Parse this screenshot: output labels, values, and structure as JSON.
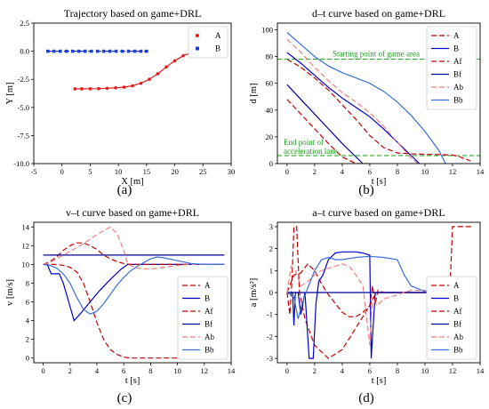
{
  "panels": [
    {
      "id": "a",
      "label": "(a)",
      "chart_data": {
        "type": "line",
        "title": "Trajectory based on game+DRL",
        "xlabel": "X [m]",
        "ylabel": "Y [m]",
        "xlim": [
          -5,
          30
        ],
        "ylim": [
          -10,
          2.5
        ],
        "xticks": [
          -5,
          0,
          5,
          10,
          15,
          20,
          25,
          30
        ],
        "yticks": [
          -10.0,
          -7.5,
          -5.0,
          -2.5,
          0.0,
          2.5
        ],
        "ytick_labels": [
          "-10.0",
          "-7.5",
          "-5.0",
          "-2.5",
          "0.0",
          "2.5"
        ],
        "legend_position": "top-right",
        "series": [
          {
            "name": "A",
            "color": "#e41a1c",
            "dash": "",
            "marker": "dot",
            "x": [
              2.3,
              3.5,
              5,
              6.5,
              8,
              9.5,
              11,
              12.5,
              14,
              15.5,
              17,
              18.5,
              20,
              21.5,
              23,
              24.5,
              26
            ],
            "y": [
              -3.35,
              -3.35,
              -3.34,
              -3.33,
              -3.3,
              -3.26,
              -3.2,
              -3.08,
              -2.85,
              -2.5,
              -2.0,
              -1.4,
              -0.85,
              -0.4,
              -0.1,
              0.05,
              0.1
            ]
          },
          {
            "name": "B",
            "color": "#1f3fd0",
            "dash": "6,3",
            "marker": "square",
            "x": [
              -2.5,
              -1.4,
              -0.3,
              0.8,
              1.9,
              3.0,
              4.1,
              5.2,
              6.3,
              7.4,
              8.5,
              9.6,
              10.7,
              11.8,
              12.9,
              14.0,
              15.0
            ],
            "y": [
              0,
              0,
              0,
              0,
              0,
              0,
              0,
              0,
              0,
              0,
              0,
              0,
              0,
              0,
              0,
              0,
              0
            ]
          }
        ]
      }
    },
    {
      "id": "b",
      "label": "(b)",
      "chart_data": {
        "type": "line",
        "title": "d–t curve based on game+DRL",
        "xlabel": "t [s]",
        "ylabel": "d [m]",
        "xlim": [
          -0.7,
          14
        ],
        "ylim": [
          0,
          105
        ],
        "xticks": [
          0,
          2,
          4,
          6,
          8,
          10,
          12,
          14
        ],
        "yticks": [
          0,
          20,
          40,
          60,
          80,
          100
        ],
        "legend_position": "top-right",
        "hlines": [
          {
            "y": 78,
            "color": "#1a9a1a",
            "dash": "5,3",
            "label": "Starting point of game area"
          },
          {
            "y": 6,
            "color": "#1a9a1a",
            "dash": "5,3",
            "label": "End point of acceleration lane"
          }
        ],
        "series": [
          {
            "name": "A",
            "color": "#c00000",
            "dash": "6,3",
            "x": [
              0,
              1,
              2,
              3,
              4,
              5,
              6,
              7,
              8,
              9,
              10,
              11,
              12,
              12.5,
              13.3
            ],
            "y": [
              78,
              72,
              64,
              55,
              44,
              33,
              21,
              12,
              8,
              7.3,
              7,
              6.8,
              6.4,
              5.2,
              2
            ]
          },
          {
            "name": "B",
            "color": "#0000cc",
            "dash": "",
            "x": [
              0,
              1,
              2,
              3,
              4,
              5,
              6,
              7,
              8,
              9,
              9.6
            ],
            "y": [
              83,
              75,
              66,
              57,
              49,
              42,
              35,
              26,
              16,
              6,
              0
            ]
          },
          {
            "name": "Af",
            "color": "#c00000",
            "dash": "6,3",
            "x": [
              0,
              1,
              2,
              3,
              4,
              5,
              5.9
            ],
            "y": [
              48,
              37,
              26,
              15,
              5,
              0,
              0
            ]
          },
          {
            "name": "Bf",
            "color": "#000099",
            "dash": "",
            "x": [
              0,
              1,
              2,
              3,
              4,
              5,
              5.5
            ],
            "y": [
              59,
              48,
              37,
              26,
              15,
              5,
              0
            ]
          },
          {
            "name": "Ab",
            "color": "#f08080",
            "dash": "6,3",
            "x": [
              0,
              1,
              2,
              3,
              4,
              5,
              6,
              7,
              8,
              9,
              9.5
            ],
            "y": [
              93,
              83,
              72,
              62,
              53,
              46,
              38,
              28,
              16,
              4,
              0
            ]
          },
          {
            "name": "Bb",
            "color": "#3a6fd8",
            "dash": "",
            "x": [
              0,
              1,
              2,
              3,
              4,
              5,
              6,
              7,
              8,
              9,
              10,
              11,
              11.5
            ],
            "y": [
              98,
              89,
              80,
              73,
              68,
              64,
              60,
              54,
              46,
              36,
              24,
              10,
              0
            ]
          }
        ]
      }
    },
    {
      "id": "c",
      "label": "(c)",
      "chart_data": {
        "type": "line",
        "title": "v–t curve based on game+DRL",
        "xlabel": "t [s]",
        "ylabel": "v [m/s]",
        "xlim": [
          -0.7,
          14
        ],
        "ylim": [
          -0.5,
          14.5
        ],
        "xticks": [
          0,
          2,
          4,
          6,
          8,
          10,
          12,
          14
        ],
        "yticks": [
          0,
          2,
          4,
          6,
          8,
          10,
          12,
          14
        ],
        "legend_position": "bottom-right",
        "series": [
          {
            "name": "A",
            "color": "#c00000",
            "dash": "6,3",
            "x": [
              0,
              0.5,
              1,
              1.5,
              2,
              2.5,
              3,
              3.5,
              4,
              4.5,
              5,
              5.5,
              6,
              6.5,
              8,
              10,
              12,
              13.5
            ],
            "y": [
              10,
              10,
              10,
              9.9,
              9.7,
              9.2,
              8,
              6,
              3.8,
              2,
              0.9,
              0.4,
              0.1,
              0,
              0,
              0,
              0,
              0
            ]
          },
          {
            "name": "B",
            "color": "#0000cc",
            "dash": "",
            "x": [
              0,
              0.3,
              0.6,
              0.9,
              1.2,
              1.5,
              1.9,
              2.3,
              2.8,
              3.5,
              4.2,
              5,
              5.8,
              6.3,
              7,
              8,
              9,
              10,
              11,
              12,
              13.5
            ],
            "y": [
              10,
              10,
              9,
              9,
              9,
              8,
              6,
              4,
              4.8,
              6,
              7.2,
              8.4,
              9.5,
              10,
              10,
              10,
              10,
              10,
              10,
              10,
              10
            ]
          },
          {
            "name": "Af",
            "color": "#c00000",
            "dash": "6,3",
            "x": [
              0,
              0.5,
              1,
              1.5,
              2,
              2.5,
              3,
              3.5,
              4,
              4.5,
              5,
              5.5,
              6,
              6.5,
              7,
              8,
              9,
              10,
              11,
              12,
              13.5
            ],
            "y": [
              10,
              10.3,
              10.8,
              11.5,
              12,
              12.3,
              12.3,
              12,
              11.6,
              11,
              10.6,
              10.3,
              10.1,
              10,
              10,
              10,
              10,
              10,
              10,
              10,
              10
            ]
          },
          {
            "name": "Bf",
            "color": "#000099",
            "dash": "",
            "x": [
              0,
              13.5
            ],
            "y": [
              11,
              11
            ]
          },
          {
            "name": "Ab",
            "color": "#f08080",
            "dash": "6,3",
            "x": [
              0,
              0.5,
              1,
              1.5,
              2,
              2.5,
              3,
              3.5,
              4,
              4.5,
              5,
              5.5,
              6,
              6.3,
              7,
              8,
              9,
              10,
              11,
              12,
              13.5
            ],
            "y": [
              10,
              10.2,
              10.6,
              11,
              11.4,
              11.8,
              12.2,
              12.7,
              13.2,
              13.6,
              14,
              13.3,
              11.5,
              10,
              9.6,
              9.5,
              9.7,
              9.9,
              10,
              10,
              10
            ]
          },
          {
            "name": "Bb",
            "color": "#3a6fd8",
            "dash": "",
            "x": [
              0,
              0.5,
              1,
              1.5,
              2,
              2.5,
              3,
              3.5,
              4,
              4.5,
              5,
              5.5,
              6,
              6.5,
              7,
              7.5,
              8,
              8.5,
              9,
              10,
              11,
              12,
              13.5
            ],
            "y": [
              10,
              9.9,
              9.6,
              9,
              8,
              6.5,
              5.2,
              4.7,
              5,
              5.8,
              6.8,
              7.8,
              8.6,
              9.3,
              9.8,
              10.2,
              10.6,
              10.8,
              10.7,
              10.4,
              10.1,
              10,
              10
            ]
          }
        ]
      }
    },
    {
      "id": "d",
      "label": "(d)",
      "chart_data": {
        "type": "line",
        "title": "a–t curve based on game+DRL",
        "xlabel": "t [s]",
        "ylabel": "a [m/s²]",
        "xlim": [
          -0.7,
          14
        ],
        "ylim": [
          -3.2,
          3.2
        ],
        "xticks": [
          0,
          2,
          4,
          6,
          8,
          10,
          12,
          14
        ],
        "yticks": [
          -3,
          -2,
          -1,
          0,
          1,
          2,
          3
        ],
        "legend_position": "bottom-right",
        "series": [
          {
            "name": "A",
            "color": "#c00000",
            "dash": "6,3",
            "x": [
              0,
              0.2,
              0.35,
              0.5,
              0.7,
              0.9,
              1.3,
              2,
              3,
              4,
              5,
              6,
              6.3,
              6.5,
              8,
              10,
              11.8,
              12,
              12.2,
              13.5
            ],
            "y": [
              0,
              -1,
              0.5,
              3,
              3,
              0,
              -1.2,
              -2.4,
              -3,
              -2.6,
              -1.6,
              -0.6,
              -0.2,
              0,
              0,
              0,
              0,
              3,
              3,
              3
            ]
          },
          {
            "name": "B",
            "color": "#0000cc",
            "dash": "",
            "x": [
              0,
              0.4,
              0.5,
              0.6,
              0.8,
              1.0,
              1.3,
              1.6,
              1.9,
              2.1,
              2.3,
              2.6,
              3.0,
              3.5,
              4,
              4.5,
              5,
              5.5,
              6.0,
              6.1,
              6.2,
              6.4,
              8,
              10,
              13.5
            ],
            "y": [
              0,
              0,
              -1.5,
              0,
              0,
              -1,
              0,
              -3,
              -3,
              -0.5,
              0.5,
              0.8,
              1.5,
              1.8,
              1.85,
              1.85,
              1.85,
              1.8,
              1.7,
              -3,
              -2,
              0,
              0,
              0,
              0
            ]
          },
          {
            "name": "Af",
            "color": "#c00000",
            "dash": "6,3",
            "x": [
              0,
              0.5,
              1,
              1.5,
              2,
              2.5,
              3,
              3.5,
              4,
              4.5,
              5,
              5.5,
              6,
              6.2,
              6.4,
              6.6,
              7,
              8,
              13.5
            ],
            "y": [
              0,
              0.8,
              0.9,
              1.3,
              1,
              0.4,
              -0.1,
              -0.5,
              -0.9,
              -1.1,
              -1.1,
              -0.9,
              -0.6,
              0.3,
              -0.5,
              0.1,
              0,
              0,
              0
            ]
          },
          {
            "name": "Bf",
            "color": "#000099",
            "dash": "",
            "x": [
              0,
              13.5
            ],
            "y": [
              0,
              0
            ]
          },
          {
            "name": "Ab",
            "color": "#f08080",
            "dash": "6,3",
            "x": [
              0,
              0.3,
              0.6,
              1,
              1.5,
              2,
              2.5,
              3,
              3.5,
              4,
              4.5,
              5,
              5.5,
              6,
              6.2,
              6.5,
              7,
              8,
              9,
              10,
              11,
              13.5
            ],
            "y": [
              0,
              1.2,
              1,
              0.3,
              0.5,
              0.8,
              1,
              1.1,
              1.2,
              1.3,
              1.2,
              0.8,
              0.3,
              -2.4,
              -0.2,
              -0.6,
              -0.3,
              -0.1,
              0.1,
              0.1,
              0,
              0
            ]
          },
          {
            "name": "Bb",
            "color": "#3a6fd8",
            "dash": "",
            "x": [
              0,
              0.5,
              0.8,
              1.1,
              1.5,
              2,
              2.5,
              3,
              3.5,
              4,
              5,
              6,
              7,
              8,
              8.5,
              9,
              10,
              11,
              13.5
            ],
            "y": [
              0,
              -0.2,
              -1.2,
              -0.5,
              0.2,
              1,
              1.5,
              1.6,
              1.5,
              1.5,
              1.6,
              1.65,
              1.6,
              1.5,
              0.8,
              0.3,
              0.05,
              0,
              0
            ]
          }
        ]
      }
    }
  ]
}
